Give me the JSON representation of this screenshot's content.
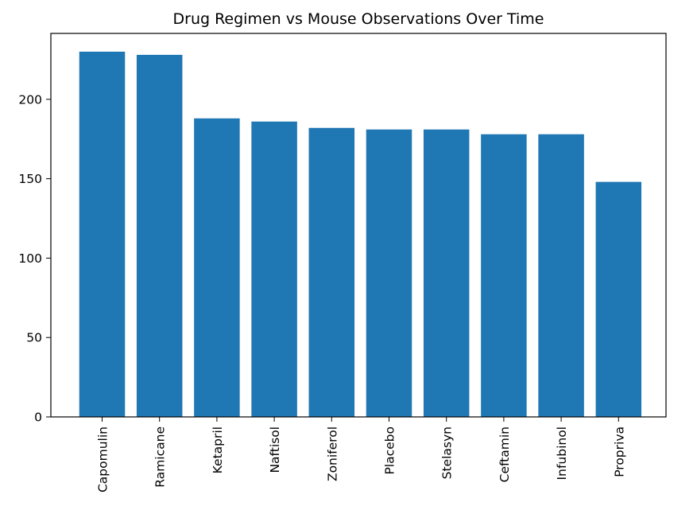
{
  "chart_data": {
    "type": "bar",
    "title": "Drug Regimen vs Mouse Observations Over Time",
    "xlabel": "",
    "ylabel": "",
    "categories": [
      "Capomulin",
      "Ramicane",
      "Ketapril",
      "Naftisol",
      "Zoniferol",
      "Placebo",
      "Stelasyn",
      "Ceftamin",
      "Infubinol",
      "Propriva"
    ],
    "values": [
      230,
      228,
      188,
      186,
      182,
      181,
      181,
      178,
      178,
      148
    ],
    "ylim": [
      0,
      241.5
    ],
    "yticks": [
      0,
      50,
      100,
      150,
      200
    ],
    "bar_color": "#1f77b4",
    "grid": false,
    "legend": "none",
    "xtick_rotation": "vertical"
  }
}
